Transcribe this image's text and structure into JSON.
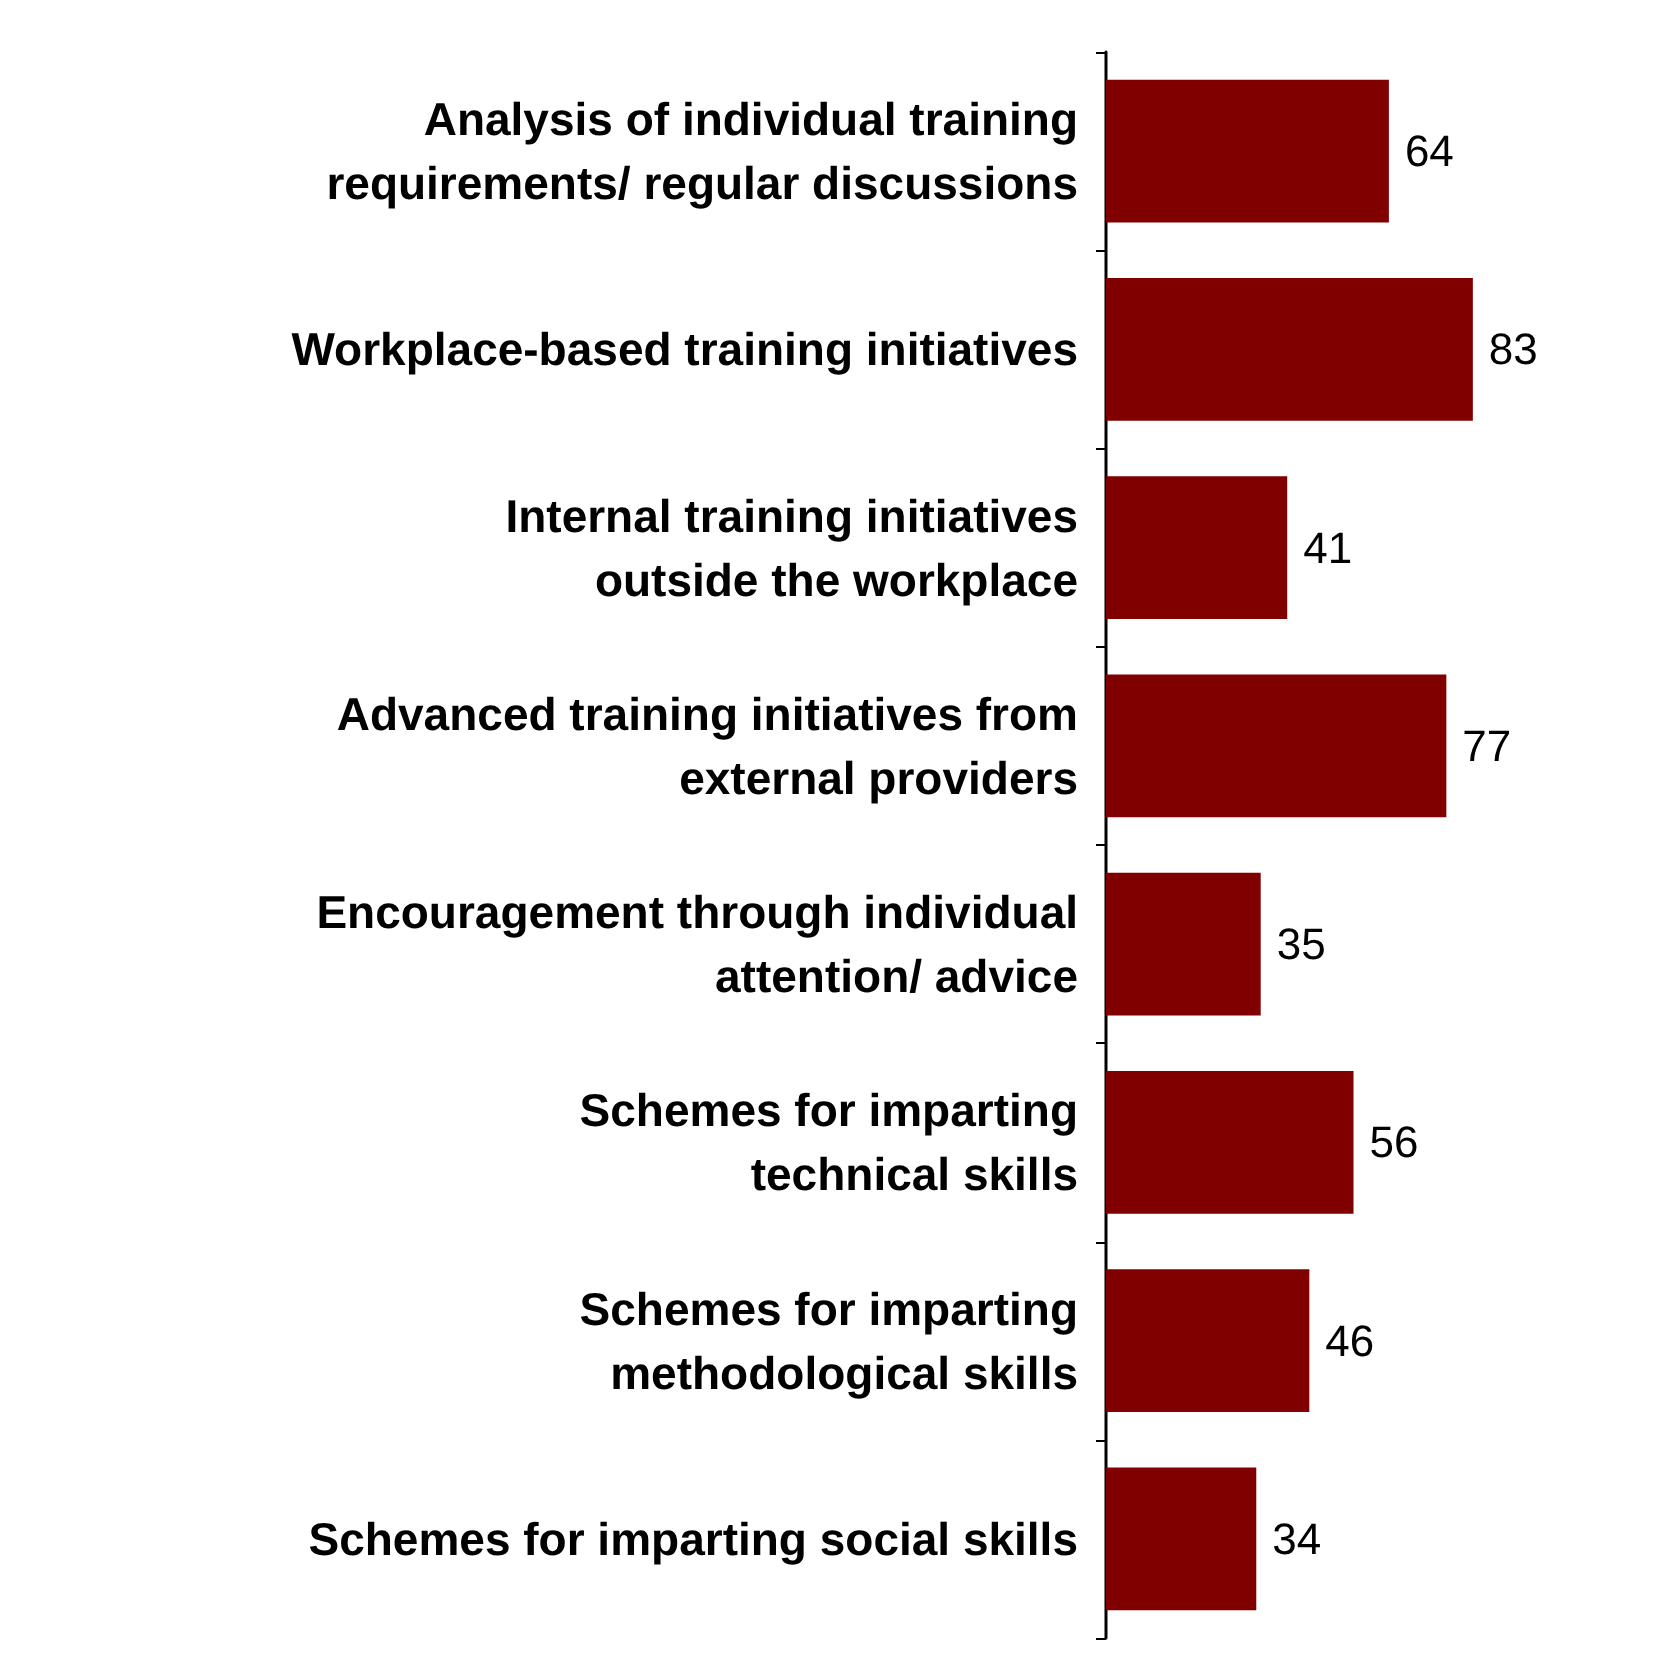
{
  "chart_data": {
    "type": "bar",
    "orientation": "horizontal",
    "categories": [
      "Analysis of individual training\nrequirements/ regular discussions",
      "Workplace-based training initiatives",
      "Internal training initiatives\noutside the workplace",
      "Advanced training initiatives from\nexternal providers",
      "Encouragement through individual\nattention/ advice",
      "Schemes for imparting\ntechnical skills",
      "Schemes for imparting\nmethodological skills",
      "Schemes for imparting social skills"
    ],
    "values": [
      64,
      83,
      41,
      77,
      35,
      56,
      46,
      34
    ],
    "color": "#800000",
    "data_labels": true
  }
}
